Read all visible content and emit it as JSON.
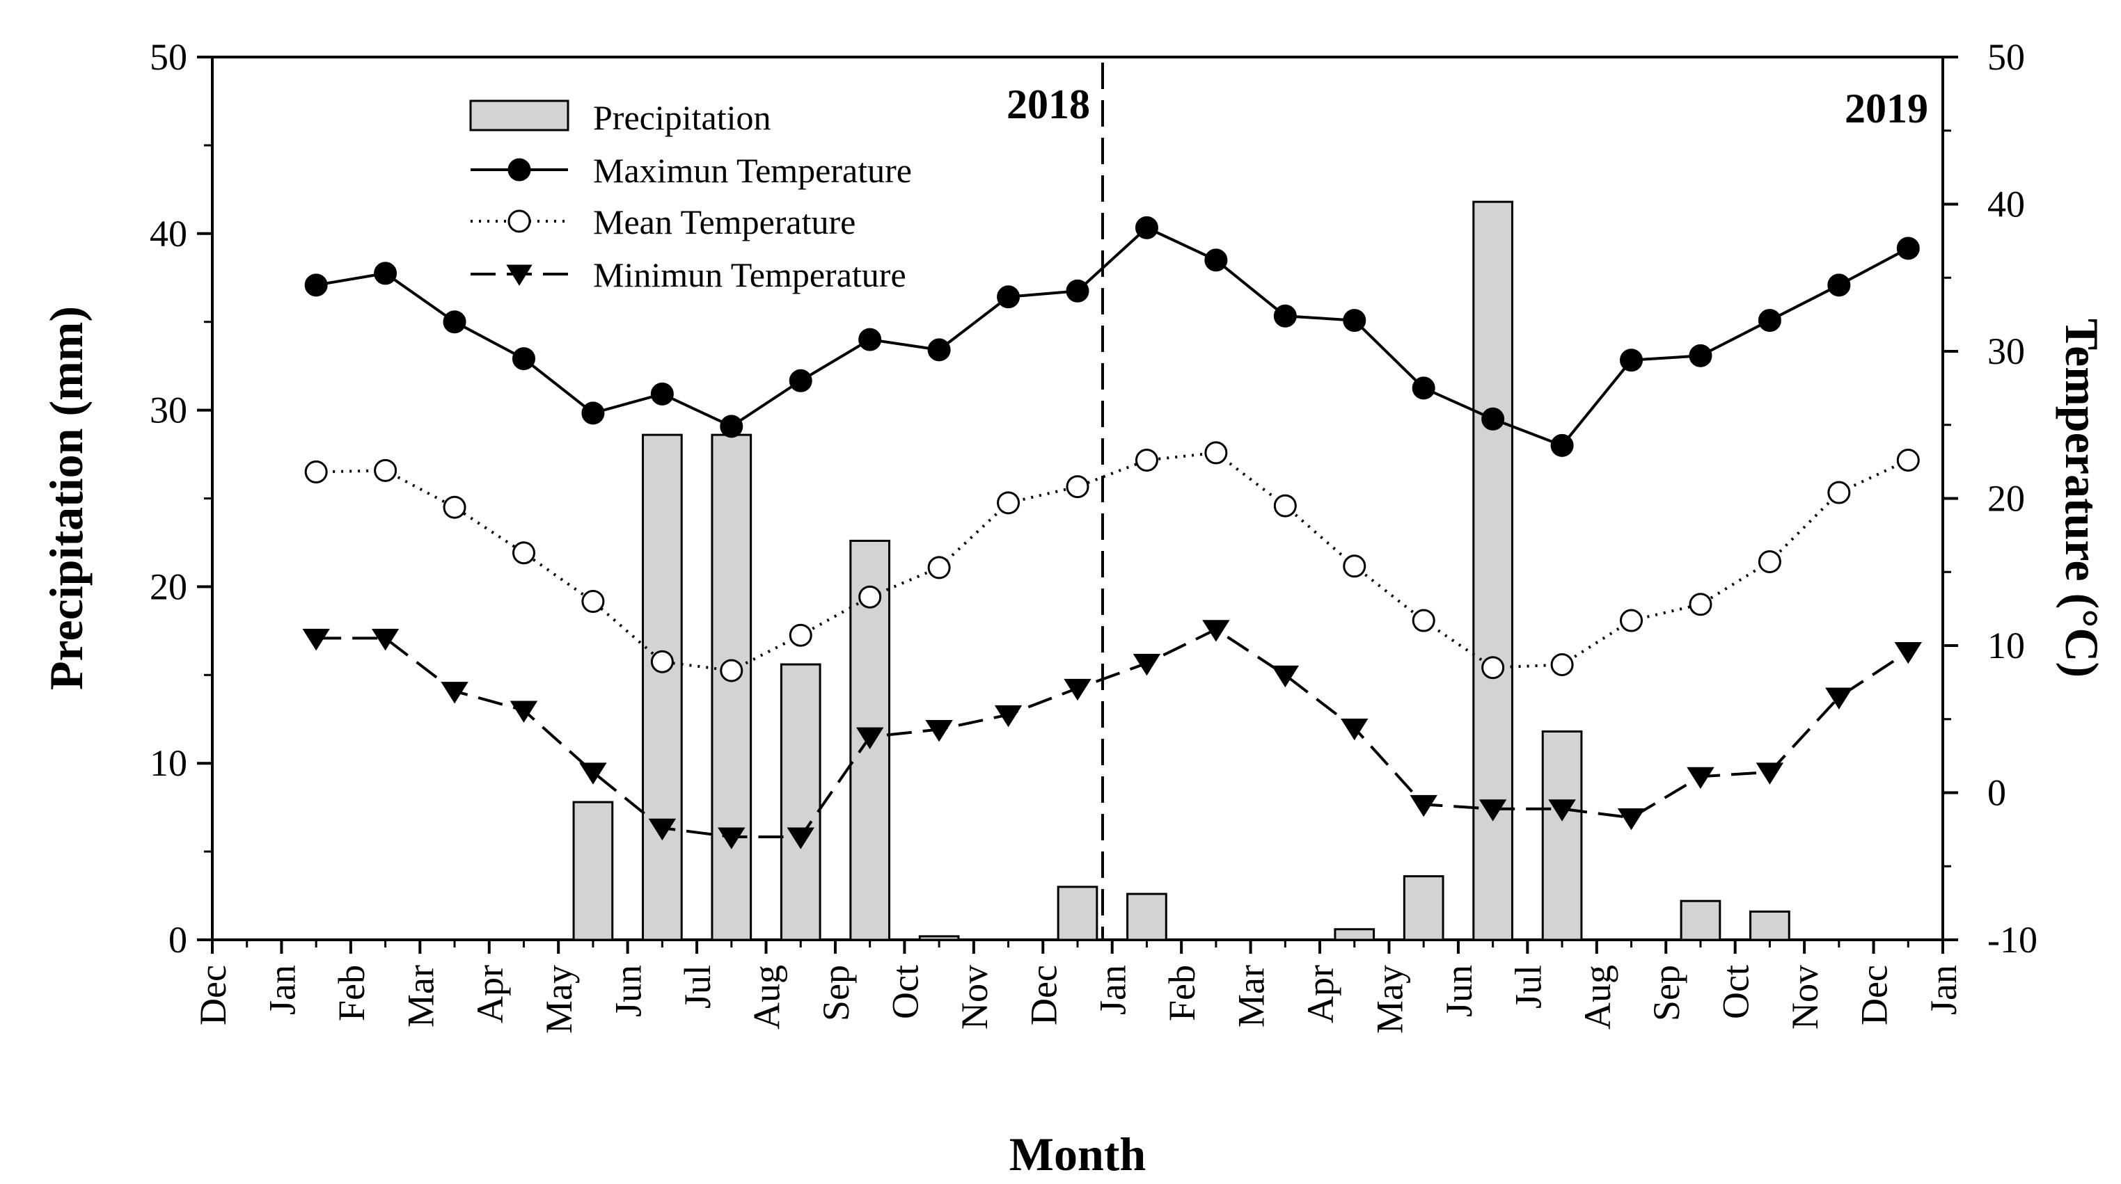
{
  "chart_data": {
    "type": "bar+line",
    "xlabel": "Month",
    "ylabel_left": "Precipitation (mm)",
    "ylabel_right": "Temperature (°C)",
    "ylim_left": [
      0,
      50
    ],
    "ylim_right": [
      -10,
      50
    ],
    "yticks_left": [
      "0",
      "10",
      "20",
      "30",
      "40",
      "50"
    ],
    "yticks_right": [
      "-10",
      "0",
      "10",
      "20",
      "30",
      "40",
      "50"
    ],
    "x_tick_labels": [
      "Dec",
      "Jan",
      "Feb",
      "Mar",
      "Apr",
      "May",
      "Jun",
      "Jul",
      "Aug",
      "Sep",
      "Oct",
      "Nov",
      "Dec",
      "Jan",
      "Feb",
      "Mar",
      "Apr",
      "May",
      "Jun",
      "Jul",
      "Aug",
      "Sep",
      "Oct",
      "Nov",
      "Dec",
      "Jan"
    ],
    "year_labels": [
      "2018",
      "2019"
    ],
    "grid": false,
    "legend_position": "top-left",
    "legend": [
      "Precipitation",
      "Maximun Temperature",
      "Mean Temperature",
      "Minimun Temperature"
    ],
    "categories": [
      "Jan 2018",
      "Feb 2018",
      "Mar 2018",
      "Apr 2018",
      "May 2018",
      "Jun 2018",
      "Jul 2018",
      "Aug 2018",
      "Sep 2018",
      "Oct 2018",
      "Nov 2018",
      "Dec 2018",
      "Jan 2019",
      "Feb 2019",
      "Mar 2019",
      "Apr 2019",
      "May 2019",
      "Jun 2019",
      "Jul 2019",
      "Aug 2019",
      "Sep 2019",
      "Oct 2019",
      "Nov 2019",
      "Dec 2019"
    ],
    "series": [
      {
        "name": "Precipitation",
        "type": "bar",
        "axis": "left",
        "values": [
          0,
          0,
          0,
          0,
          7.8,
          28.6,
          28.6,
          15.6,
          22.6,
          0.2,
          0,
          3.0,
          2.6,
          0,
          0,
          0.6,
          3.6,
          41.8,
          11.8,
          0,
          2.2,
          1.6,
          0,
          0
        ]
      },
      {
        "name": "Maximun Temperature",
        "type": "line",
        "axis": "right",
        "values": [
          34.5,
          35.3,
          32.0,
          29.5,
          25.8,
          27.1,
          24.9,
          28.0,
          30.8,
          30.1,
          33.7,
          34.1,
          38.4,
          36.2,
          32.4,
          32.1,
          27.5,
          25.4,
          23.6,
          29.4,
          29.7,
          32.1,
          34.5,
          37.0
        ]
      },
      {
        "name": "Mean Temperature",
        "type": "line",
        "axis": "right",
        "values": [
          21.8,
          21.9,
          19.4,
          16.3,
          13.0,
          8.9,
          8.3,
          10.7,
          13.3,
          15.3,
          19.7,
          20.8,
          22.6,
          23.1,
          19.5,
          15.4,
          11.7,
          8.5,
          8.7,
          11.7,
          12.8,
          15.7,
          20.4,
          22.6
        ]
      },
      {
        "name": "Minimun Temperature",
        "type": "line",
        "axis": "right",
        "values": [
          10.5,
          10.5,
          6.9,
          5.6,
          1.4,
          -2.4,
          -3.0,
          -3.0,
          3.8,
          4.3,
          5.3,
          7.1,
          8.8,
          11.1,
          8.0,
          4.4,
          -0.8,
          -1.1,
          -1.1,
          -1.7,
          1.1,
          1.4,
          6.5,
          9.6
        ]
      }
    ],
    "colors": {
      "bar_fill": "#d3d3d3",
      "stroke": "#000000",
      "marker_filled": "#000000",
      "marker_open": "#ffffff"
    }
  }
}
